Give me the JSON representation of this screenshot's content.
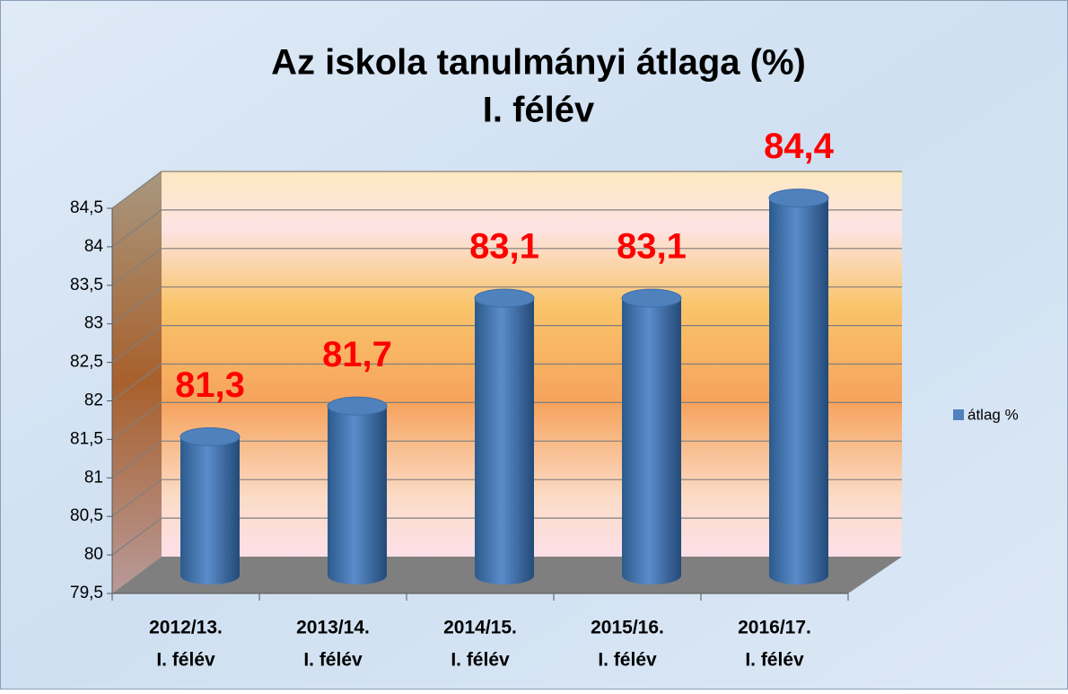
{
  "chart_data": {
    "type": "bar",
    "title": "Az iskola tanulmányi átlaga (%)",
    "subtitle": "I. félév",
    "categories": [
      [
        "2012/13.",
        "I. félév"
      ],
      [
        "2013/14.",
        "I. félév"
      ],
      [
        "2014/15.",
        "I. félév"
      ],
      [
        "2015/16.",
        "I. félév"
      ],
      [
        "2016/17.",
        "I. félév"
      ]
    ],
    "series": [
      {
        "name": "átlag %",
        "color": "#4f81bd",
        "values": [
          81.3,
          81.7,
          83.1,
          83.1,
          84.4
        ],
        "value_labels": [
          "81,3",
          "81,7",
          "83,1",
          "83,1",
          "84,4"
        ]
      }
    ],
    "ylim": [
      79.5,
      84.5
    ],
    "yticks": [
      {
        "value": 79.5,
        "label": "79,5"
      },
      80,
      {
        "value": 80.5,
        "label": "80,5"
      },
      81,
      {
        "value": 81.5,
        "label": "81,5"
      },
      82,
      {
        "value": 82.5,
        "label": "82,5"
      },
      83,
      {
        "value": 83.5,
        "label": "83,5"
      },
      84,
      {
        "value": 84.5,
        "label": "84,5"
      }
    ],
    "grid": true,
    "legend": "right"
  }
}
